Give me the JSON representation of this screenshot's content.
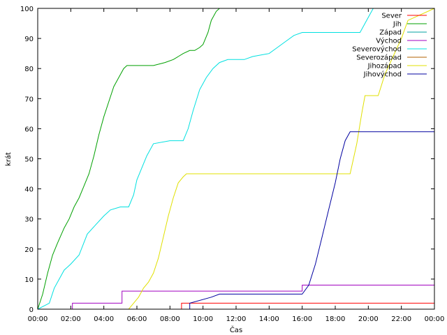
{
  "chart_data": {
    "type": "line",
    "title": "",
    "xlabel": "Čas",
    "ylabel": "krát",
    "xlim": [
      0,
      24
    ],
    "ylim": [
      0,
      100
    ],
    "x_ticks": [
      "00:00",
      "02:00",
      "04:00",
      "06:00",
      "08:00",
      "10:00",
      "12:00",
      "14:00",
      "16:00",
      "18:00",
      "20:00",
      "22:00",
      "00:00"
    ],
    "y_ticks": [
      0,
      10,
      20,
      30,
      40,
      50,
      60,
      70,
      80,
      90,
      100
    ],
    "grid": false,
    "legend_position": "top-right",
    "series": [
      {
        "name": "Sever",
        "color": "#ff0000",
        "x": [
          0,
          8.7,
          8.7,
          24
        ],
        "y": [
          0,
          0,
          2,
          2
        ]
      },
      {
        "name": "Jih",
        "color": "#00a000",
        "x": [
          0,
          0.3,
          0.6,
          0.9,
          1.2,
          1.6,
          1.9,
          2.2,
          2.5,
          2.8,
          3.1,
          3.4,
          3.7,
          4.0,
          4.3,
          4.6,
          4.9,
          5.2,
          5.4,
          5.6,
          6.0,
          7.0,
          7.7,
          8.2,
          8.5,
          8.8,
          9.2,
          9.5,
          9.8,
          10.0,
          10.3,
          10.5,
          10.8,
          11.0,
          24
        ],
        "y": [
          0,
          5,
          12,
          18,
          22,
          27,
          30,
          34,
          37,
          41,
          45,
          51,
          58,
          64,
          69,
          74,
          77,
          80,
          81,
          81,
          81,
          81,
          82,
          83,
          84,
          85,
          86,
          86,
          87,
          88,
          92,
          96,
          99,
          100,
          100
        ]
      },
      {
        "name": "Západ",
        "color": "#00a0a0",
        "x": [
          0,
          24
        ],
        "y": [
          0,
          0
        ]
      },
      {
        "name": "Východ",
        "color": "#a000c0",
        "x": [
          0,
          2.1,
          2.1,
          5.1,
          5.1,
          16.0,
          16.0,
          24
        ],
        "y": [
          0,
          0,
          2,
          2,
          6,
          6,
          8,
          8
        ]
      },
      {
        "name": "Severovýchod",
        "color": "#00e0e0",
        "x": [
          0,
          0.7,
          1.0,
          1.3,
          1.6,
          2.0,
          2.5,
          3.0,
          3.5,
          4.0,
          4.4,
          5.0,
          5.5,
          5.8,
          6.0,
          6.3,
          6.6,
          7.0,
          8.0,
          8.8,
          9.1,
          9.4,
          9.8,
          10.2,
          10.6,
          11.0,
          11.5,
          12.5,
          13.0,
          14.0,
          14.5,
          15.0,
          15.5,
          16.0,
          17.0,
          19.5,
          20.0,
          20.3,
          24
        ],
        "y": [
          0,
          2,
          7,
          10,
          13,
          15,
          18,
          25,
          28,
          31,
          33,
          34,
          34,
          38,
          43,
          47,
          51,
          55,
          56,
          56,
          60,
          66,
          73,
          77,
          80,
          82,
          83,
          83,
          84,
          85,
          87,
          89,
          91,
          92,
          92,
          92,
          97,
          100,
          100
        ]
      },
      {
        "name": "Severozápad",
        "color": "#b06000",
        "x": [
          0,
          24
        ],
        "y": [
          0,
          0
        ]
      },
      {
        "name": "Jihozápad",
        "color": "#e0e000",
        "x": [
          0,
          5.5,
          5.8,
          6.1,
          6.4,
          6.7,
          7.0,
          7.3,
          7.6,
          7.9,
          8.2,
          8.5,
          8.8,
          9.0,
          10.0,
          12.0,
          14.0,
          16.0,
          18.0,
          18.9,
          19.3,
          19.6,
          19.8,
          20.3,
          20.6,
          21.0,
          21.5,
          22.0,
          22.4,
          24
        ],
        "y": [
          0,
          0,
          2,
          4,
          7,
          9,
          12,
          17,
          24,
          31,
          37,
          42,
          44,
          45,
          45,
          45,
          45,
          45,
          45,
          45,
          55,
          65,
          71,
          71,
          71,
          78,
          84,
          90,
          96,
          100
        ]
      },
      {
        "name": "Jihovýchod",
        "color": "#0000a0",
        "x": [
          0,
          9.2,
          9.2,
          10.5,
          11.0,
          12.0,
          14.0,
          16.0,
          16.4,
          16.8,
          17.2,
          17.6,
          18.0,
          18.3,
          18.6,
          18.9,
          19.5,
          24
        ],
        "y": [
          0,
          0,
          2,
          4,
          5,
          5,
          5,
          5,
          8,
          15,
          24,
          33,
          42,
          50,
          56,
          59,
          59,
          59
        ]
      }
    ]
  }
}
